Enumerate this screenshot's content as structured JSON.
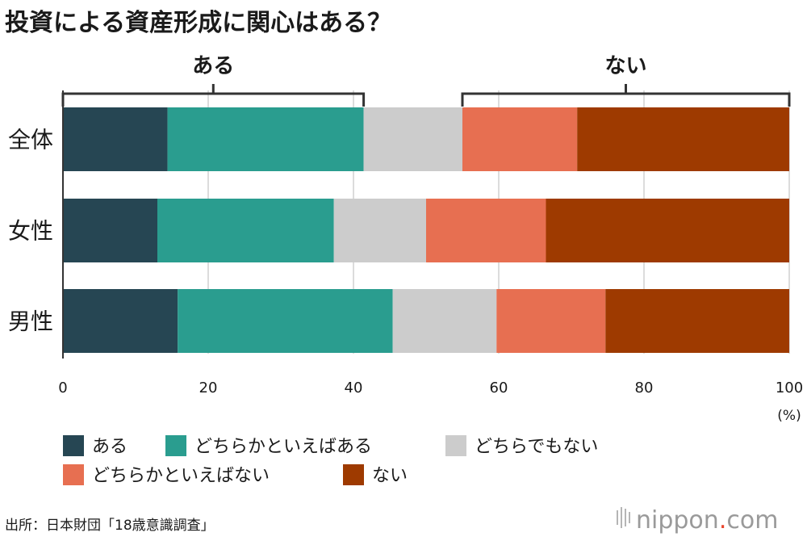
{
  "chart_data": {
    "type": "bar",
    "orientation": "horizontal",
    "stacked": true,
    "title": "投資による資産形成に関心はある？",
    "categories": [
      "全体",
      "女性",
      "男性"
    ],
    "series": [
      {
        "name": "ある",
        "color": "#264653",
        "values": [
          14.4,
          13.0,
          15.8
        ]
      },
      {
        "name": "どちらかといえばある",
        "color": "#2a9d8f",
        "values": [
          27.0,
          24.3,
          29.6
        ]
      },
      {
        "name": "どちらでもない",
        "color": "#cccccc",
        "values": [
          13.6,
          12.7,
          14.3
        ]
      },
      {
        "name": "どちらかといえばない",
        "color": "#e76f51",
        "values": [
          15.8,
          16.5,
          15.0
        ]
      },
      {
        "name": "ない",
        "color": "#9e3a00",
        "values": [
          29.2,
          33.5,
          25.3
        ]
      }
    ],
    "x_ticks": [
      0,
      20,
      40,
      60,
      80,
      100
    ],
    "xlim": [
      0,
      100
    ],
    "x_unit": "(%)",
    "grid": true,
    "brackets": [
      {
        "label": "ある",
        "from": 0,
        "to": 41.4
      },
      {
        "label": "ない",
        "from": 55.0,
        "to": 100
      }
    ],
    "legend_position": "bottom"
  },
  "source": "出所：日本財団「18歳意識調査」",
  "brand": {
    "main": "nippon",
    "dot": ".",
    "suffix": "com"
  }
}
